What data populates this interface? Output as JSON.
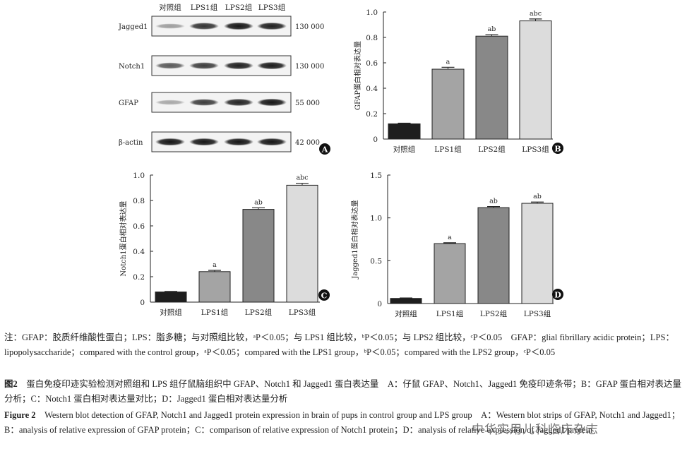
{
  "blot": {
    "lanes": [
      "对照组",
      "LPS1组",
      "LPS2组",
      "LPS3组"
    ],
    "bands": [
      {
        "name": "Jagged1",
        "size": "130 000",
        "intensity": [
          0.25,
          0.8,
          0.95,
          0.9
        ]
      },
      {
        "name": "Notch1",
        "size": "130 000",
        "intensity": [
          0.6,
          0.75,
          0.9,
          0.92
        ]
      },
      {
        "name": "GFAP",
        "size": "55 000",
        "intensity": [
          0.2,
          0.75,
          0.88,
          0.95
        ]
      },
      {
        "name": "β-actin",
        "size": "42 000",
        "intensity": [
          0.95,
          0.95,
          0.95,
          0.95
        ]
      }
    ],
    "panel_label": "A"
  },
  "chart_data": [
    {
      "type": "bar",
      "panel": "B",
      "ylabel": "GFAP蛋白相对表达量",
      "categories": [
        "对照组",
        "LPS1组",
        "LPS2组",
        "LPS3组"
      ],
      "values": [
        0.12,
        0.55,
        0.81,
        0.93
      ],
      "errors": [
        0.005,
        0.015,
        0.012,
        0.015
      ],
      "annotations": [
        "",
        "a",
        "ab",
        "abc"
      ],
      "ylim": [
        0,
        1.0
      ],
      "yticks": [
        "0",
        "0.2",
        "0.4",
        "0.6",
        "0.8",
        "1.0"
      ]
    },
    {
      "type": "bar",
      "panel": "C",
      "ylabel": "Notch1蛋白相对表达量",
      "categories": [
        "对照组",
        "LPS1组",
        "LPS2组",
        "LPS3组"
      ],
      "values": [
        0.08,
        0.24,
        0.73,
        0.92
      ],
      "errors": [
        0.004,
        0.01,
        0.012,
        0.015
      ],
      "annotations": [
        "",
        "a",
        "ab",
        "abc"
      ],
      "ylim": [
        0,
        1.0
      ],
      "yticks": [
        "0",
        "0.2",
        "0.4",
        "0.6",
        "0.8",
        "1.0"
      ]
    },
    {
      "type": "bar",
      "panel": "D",
      "ylabel": "Jagged1蛋白相对表达量",
      "categories": [
        "对照组",
        "LPS1组",
        "LPS2组",
        "LPS3组"
      ],
      "values": [
        0.06,
        0.7,
        1.12,
        1.17
      ],
      "errors": [
        0.005,
        0.01,
        0.012,
        0.015
      ],
      "annotations": [
        "",
        "a",
        "ab",
        "ab"
      ],
      "ylim": [
        0,
        1.5
      ],
      "yticks": [
        "0",
        "0.5",
        "1.0",
        "1.5"
      ]
    }
  ],
  "caption": {
    "note": "注：GFAP：胶质纤维酸性蛋白；LPS：脂多糖；与对照组比较，ᵃP＜0.05；与 LPS1 组比较，ᵇP＜0.05；与 LPS2 组比较，ᶜP＜0.05　GFAP：glial fibrillary acidic protein；LPS：lipopolysaccharide；compared with the control group，ᵃP＜0.05；compared with the LPS1 group，ᵇP＜0.05；compared with the LPS2 group，ᶜP＜0.05",
    "cn_label": "图2",
    "cn_text": "蛋白免疫印迹实验检测对照组和 LPS 组仔鼠脑组织中 GFAP、Notch1 和 Jagged1 蛋白表达量　A：仔鼠 GFAP、Notch1、Jagged1 免疫印迹条带；B：GFAP 蛋白相对表达量分析；C：Notch1 蛋白相对表达量对比；D：Jagged1 蛋白相对表达量分析",
    "en_label": "Figure 2",
    "en_text": "Western blot detection of GFAP, Notch1 and Jagged1 protein expression in brain of pups in control group and LPS group　A：Western blot strips of GFAP, Notch1 and Jagged1；B：analysis of relative expression of GFAP protein；C：comparison of relative expression of Notch1 protein；D：analysis of relative expression of Jagged1 protein"
  },
  "watermark": "中华实用儿科临床杂志"
}
